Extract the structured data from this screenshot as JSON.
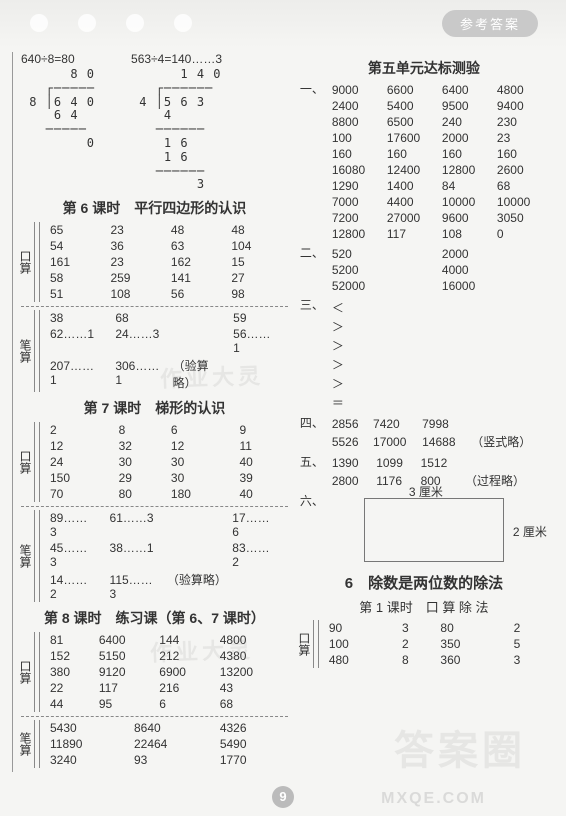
{
  "header": {
    "pill": "参考答案"
  },
  "topLeft": {
    "exprs": [
      "640÷8=80",
      "563÷4=140……3"
    ],
    "longdiv1": "      8 0\n   ┌─────\n 8 │6 4 0\n    6 4\n   ─────\n        0",
    "longdiv2": "      1 4 0\n   ┌──────\n 4 │5 6 3\n    4\n   ──────\n    1 6\n    1 6\n   ──────\n        3"
  },
  "sec6": {
    "title": "第 6 课时　平行四边形的认识",
    "kou_label": "口算",
    "kou": [
      [
        "65",
        "23",
        "48",
        "48"
      ],
      [
        "54",
        "36",
        "63",
        "104"
      ],
      [
        "161",
        "23",
        "162",
        "15"
      ],
      [
        "58",
        "259",
        "141",
        "27"
      ],
      [
        "51",
        "108",
        "56",
        "98"
      ]
    ],
    "bi_label": "笔算",
    "bi": [
      [
        "38",
        "",
        "68",
        "",
        "59",
        ""
      ],
      [
        "62……1",
        "",
        "24……3",
        "",
        "56……1",
        ""
      ],
      [
        "207……1",
        "",
        "306……1",
        "（验算略）",
        "",
        ""
      ]
    ]
  },
  "sec7": {
    "title": "第 7 课时　梯形的认识",
    "kou_label": "口算",
    "kou": [
      [
        "2",
        "8",
        "6",
        "9"
      ],
      [
        "12",
        "32",
        "12",
        "11"
      ],
      [
        "24",
        "30",
        "30",
        "40"
      ],
      [
        "150",
        "29",
        "30",
        "39"
      ],
      [
        "70",
        "80",
        "180",
        "40"
      ]
    ],
    "bi_label": "笔算",
    "bi": [
      [
        "89……3",
        "",
        "61……3",
        "",
        "17……6",
        ""
      ],
      [
        "45……3",
        "",
        "38……1",
        "",
        "83……2",
        ""
      ],
      [
        "14……2",
        "",
        "115……3",
        "（验算略）",
        "",
        ""
      ]
    ]
  },
  "sec8": {
    "title": "第 8 课时　练习课（第 6、7 课时）",
    "kou_label": "口算",
    "kou": [
      [
        "81",
        "6400",
        "144",
        "4800"
      ],
      [
        "152",
        "5150",
        "212",
        "4380"
      ],
      [
        "380",
        "9120",
        "6900",
        "13200"
      ],
      [
        "22",
        "117",
        "216",
        "43"
      ],
      [
        "44",
        "95",
        "6",
        "68"
      ]
    ],
    "bi_label": "笔算",
    "bi": [
      [
        "5430",
        "8640",
        "4326"
      ],
      [
        "11890",
        "22464",
        "5490"
      ],
      [
        "3240",
        "93",
        "1770"
      ]
    ]
  },
  "unit5": {
    "title": "第五单元达标测验",
    "q1_label": "一、",
    "q1": [
      [
        "9000",
        "6600",
        "6400",
        "4800"
      ],
      [
        "2400",
        "5400",
        "9500",
        "9400"
      ],
      [
        "8800",
        "6500",
        "240",
        "230"
      ],
      [
        "100",
        "17600",
        "2000",
        "23"
      ],
      [
        "160",
        "160",
        "160",
        "160"
      ],
      [
        "16080",
        "12400",
        "12800",
        "2600"
      ],
      [
        "1290",
        "1400",
        "84",
        "68"
      ],
      [
        "7000",
        "4400",
        "10000",
        "10000"
      ],
      [
        "7200",
        "27000",
        "9600",
        "3050"
      ],
      [
        "12800",
        "117",
        "108",
        "0"
      ]
    ],
    "q2_label": "二、",
    "q2": [
      [
        "520",
        "2000"
      ],
      [
        "5200",
        "4000"
      ],
      [
        "52000",
        "16000"
      ]
    ],
    "q3_label": "三、",
    "q3": [
      "＜",
      "＞",
      "＞",
      "＞",
      "＞",
      "＝"
    ],
    "q4_label": "四、",
    "q4": [
      [
        "2856",
        "7420",
        "7998",
        ""
      ],
      [
        "5526",
        "17000",
        "14688",
        "（竖式略）"
      ]
    ],
    "q5_label": "五、",
    "q5": [
      [
        "1390",
        "1099",
        "1512",
        ""
      ],
      [
        "2800",
        "1176",
        "800",
        "（过程略）"
      ]
    ],
    "q6_label": "六、",
    "q6_top": "3 厘米",
    "q6_side": "2 厘米"
  },
  "chapter6": {
    "title": "6　除数是两位数的除法",
    "sub": "第 1 课时　口 算 除 法",
    "kou_label": "口算",
    "kou": [
      [
        "90",
        "3",
        "80",
        "2"
      ],
      [
        "100",
        "2",
        "350",
        "5"
      ],
      [
        "480",
        "8",
        "360",
        "3"
      ]
    ]
  },
  "pagenum": "9",
  "watermarks": {
    "big": "答案圈",
    "url": "MXQE.COM",
    "mid1": "作业大灵",
    "mid2": "作业大灵"
  }
}
